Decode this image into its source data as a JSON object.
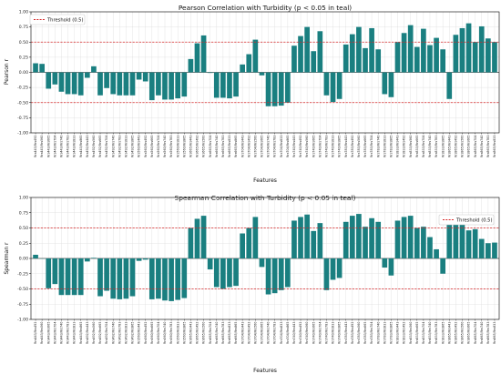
{
  "colors": {
    "bar": "#1a7f80",
    "threshold_line": "#d62728",
    "grid": "#dddddd",
    "axis": "#000000"
  },
  "chart_data": [
    {
      "type": "bar",
      "title": "Pearson Correlation with Turbidity (p < 0.05 in teal)",
      "xlabel": "Features",
      "ylabel": "Pearson r",
      "ylim": [
        -1.0,
        1.0
      ],
      "yticks": [
        "-1.00",
        "-0.75",
        "-0.50",
        "-0.25",
        "0.00",
        "0.25",
        "0.50",
        "0.75",
        "1.00"
      ],
      "grid": true,
      "legend": {
        "placement": "top-left",
        "entries": [
          "Threshold (0.5)"
        ]
      },
      "threshold_lines": [
        0.5,
        -0.5
      ],
      "categories": [
        "Rrs443/Rrs492",
        "Rrs443/Rrs560",
        "Rrs443/Rrs665",
        "Rrs443/Rrs704",
        "Rrs443/Rrs740",
        "Rrs443/Rrs783",
        "Rrs443/Rrs833",
        "Rrs443/Rrs865",
        "Rrs492/Rrs443",
        "Rrs492/Rrs560",
        "Rrs492/Rrs665",
        "Rrs492/Rrs704",
        "Rrs492/Rrs740",
        "Rrs492/Rrs783",
        "Rrs492/Rrs833",
        "Rrs492/Rrs865",
        "Rrs560/Rrs443",
        "Rrs560/Rrs492",
        "Rrs560/Rrs665",
        "Rrs560/Rrs704",
        "Rrs560/Rrs740",
        "Rrs560/Rrs783",
        "Rrs560/Rrs833",
        "Rrs560/Rrs865",
        "Rrs665/Rrs443",
        "Rrs665/Rrs492",
        "Rrs665/Rrs560",
        "Rrs665/Rrs704",
        "Rrs665/Rrs740",
        "Rrs665/Rrs783",
        "Rrs665/Rrs833",
        "Rrs665/Rrs865",
        "Rrs704/Rrs443",
        "Rrs704/Rrs492",
        "Rrs704/Rrs560",
        "Rrs704/Rrs665",
        "Rrs704/Rrs740",
        "Rrs704/Rrs783",
        "Rrs704/Rrs833",
        "Rrs704/Rrs865",
        "Rrs740/Rrs443",
        "Rrs740/Rrs492",
        "Rrs740/Rrs560",
        "Rrs740/Rrs665",
        "Rrs740/Rrs704",
        "Rrs740/Rrs783",
        "Rrs740/Rrs833",
        "Rrs740/Rrs865",
        "Rrs783/Rrs443",
        "Rrs783/Rrs492",
        "Rrs783/Rrs560",
        "Rrs783/Rrs665",
        "Rrs783/Rrs704",
        "Rrs783/Rrs740",
        "Rrs783/Rrs833",
        "Rrs783/Rrs865",
        "Rrs833/Rrs443",
        "Rrs833/Rrs492",
        "Rrs833/Rrs560",
        "Rrs833/Rrs665",
        "Rrs833/Rrs704",
        "Rrs833/Rrs740",
        "Rrs833/Rrs783",
        "Rrs833/Rrs865",
        "Rrs865/Rrs443",
        "Rrs865/Rrs492",
        "Rrs865/Rrs560",
        "Rrs865/Rrs665",
        "Rrs865/Rrs704",
        "Rrs865/Rrs740",
        "Rrs865/Rrs783",
        "Rrs865/Rrs833"
      ],
      "values": [
        0.15,
        0.14,
        -0.27,
        -0.2,
        -0.32,
        -0.36,
        -0.36,
        -0.38,
        -0.09,
        0.1,
        -0.38,
        -0.26,
        -0.36,
        -0.38,
        -0.38,
        -0.38,
        -0.12,
        -0.15,
        -0.46,
        -0.38,
        -0.45,
        -0.45,
        -0.43,
        -0.4,
        0.22,
        0.48,
        0.61,
        -0.01,
        -0.42,
        -0.42,
        -0.43,
        -0.4,
        0.13,
        0.3,
        0.54,
        -0.05,
        -0.56,
        -0.56,
        -0.55,
        -0.5,
        0.44,
        0.6,
        0.75,
        0.35,
        0.68,
        -0.38,
        -0.49,
        -0.44,
        0.46,
        0.63,
        0.75,
        0.4,
        0.73,
        0.38,
        -0.36,
        -0.41,
        0.5,
        0.65,
        0.78,
        0.42,
        0.72,
        0.45,
        0.57,
        0.38,
        -0.44,
        0.62,
        0.73,
        0.81,
        0.5,
        0.76,
        0.56,
        0.5
      ]
    },
    {
      "type": "bar",
      "title": "Spearman Correlation with Turbidity (p < 0.05 in teal)",
      "xlabel": "Features",
      "ylabel": "Spearman r",
      "ylim": [
        -1.0,
        1.0
      ],
      "yticks": [
        "-1.00",
        "-0.75",
        "-0.50",
        "-0.25",
        "0.00",
        "0.25",
        "0.50",
        "0.75",
        "1.00"
      ],
      "grid": true,
      "legend": {
        "placement": "top-right",
        "entries": [
          "Threshold (0.5)"
        ]
      },
      "threshold_lines": [
        0.5,
        -0.5
      ],
      "categories": [
        "Rrs443/Rrs492",
        "Rrs443/Rrs560",
        "Rrs443/Rrs665",
        "Rrs443/Rrs704",
        "Rrs443/Rrs740",
        "Rrs443/Rrs783",
        "Rrs443/Rrs833",
        "Rrs443/Rrs865",
        "Rrs492/Rrs443",
        "Rrs492/Rrs560",
        "Rrs492/Rrs665",
        "Rrs492/Rrs704",
        "Rrs492/Rrs740",
        "Rrs492/Rrs783",
        "Rrs492/Rrs833",
        "Rrs492/Rrs865",
        "Rrs560/Rrs443",
        "Rrs560/Rrs492",
        "Rrs560/Rrs665",
        "Rrs560/Rrs704",
        "Rrs560/Rrs740",
        "Rrs560/Rrs783",
        "Rrs560/Rrs833",
        "Rrs560/Rrs865",
        "Rrs665/Rrs443",
        "Rrs665/Rrs492",
        "Rrs665/Rrs560",
        "Rrs665/Rrs704",
        "Rrs665/Rrs740",
        "Rrs665/Rrs783",
        "Rrs665/Rrs833",
        "Rrs665/Rrs865",
        "Rrs704/Rrs443",
        "Rrs704/Rrs492",
        "Rrs704/Rrs560",
        "Rrs704/Rrs665",
        "Rrs704/Rrs740",
        "Rrs704/Rrs783",
        "Rrs704/Rrs833",
        "Rrs704/Rrs865",
        "Rrs740/Rrs443",
        "Rrs740/Rrs492",
        "Rrs740/Rrs560",
        "Rrs740/Rrs665",
        "Rrs740/Rrs704",
        "Rrs740/Rrs783",
        "Rrs740/Rrs833",
        "Rrs740/Rrs865",
        "Rrs783/Rrs443",
        "Rrs783/Rrs492",
        "Rrs783/Rrs560",
        "Rrs783/Rrs665",
        "Rrs783/Rrs704",
        "Rrs783/Rrs740",
        "Rrs783/Rrs833",
        "Rrs783/Rrs865",
        "Rrs833/Rrs443",
        "Rrs833/Rrs492",
        "Rrs833/Rrs560",
        "Rrs833/Rrs665",
        "Rrs833/Rrs704",
        "Rrs833/Rrs740",
        "Rrs833/Rrs783",
        "Rrs833/Rrs865",
        "Rrs865/Rrs443",
        "Rrs865/Rrs492",
        "Rrs865/Rrs560",
        "Rrs865/Rrs665",
        "Rrs865/Rrs704",
        "Rrs865/Rrs740",
        "Rrs865/Rrs783",
        "Rrs865/Rrs833"
      ],
      "values": [
        0.06,
        0.0,
        -0.49,
        -0.42,
        -0.6,
        -0.6,
        -0.6,
        -0.6,
        -0.05,
        0.01,
        -0.62,
        -0.53,
        -0.66,
        -0.67,
        -0.66,
        -0.62,
        -0.04,
        -0.02,
        -0.67,
        -0.66,
        -0.69,
        -0.7,
        -0.68,
        -0.65,
        0.5,
        0.65,
        0.7,
        -0.18,
        -0.47,
        -0.5,
        -0.47,
        -0.45,
        0.41,
        0.5,
        0.68,
        -0.14,
        -0.59,
        -0.57,
        -0.52,
        -0.47,
        0.62,
        0.68,
        0.72,
        0.45,
        0.58,
        -0.52,
        -0.35,
        -0.32,
        0.6,
        0.7,
        0.73,
        0.52,
        0.66,
        0.6,
        -0.15,
        -0.28,
        0.62,
        0.68,
        0.7,
        0.5,
        0.52,
        0.35,
        0.15,
        -0.25,
        0.62,
        0.65,
        0.65,
        0.46,
        0.48,
        0.32,
        0.25,
        0.26
      ]
    }
  ]
}
